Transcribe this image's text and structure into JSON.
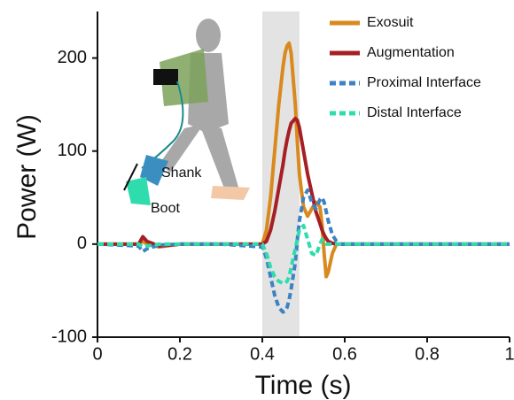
{
  "chart_data": {
    "type": "line",
    "x_label": "Time (s)",
    "y_label": "Power (W)",
    "xlim": [
      0,
      1
    ],
    "ylim": [
      -100,
      250
    ],
    "xticks": [
      0,
      0.2,
      0.4,
      0.6,
      0.8,
      1
    ],
    "yticks": [
      -100,
      0,
      100,
      200
    ],
    "shaded_x": [
      0.4,
      0.49
    ],
    "legend": "upper right",
    "annotations": [
      {
        "text": "Shank"
      },
      {
        "text": "Boot"
      }
    ],
    "x": [
      0,
      0.1,
      0.11,
      0.12,
      0.15,
      0.2,
      0.3,
      0.4,
      0.41,
      0.42,
      0.43,
      0.44,
      0.45,
      0.455,
      0.46,
      0.465,
      0.47,
      0.48,
      0.485,
      0.49,
      0.5,
      0.51,
      0.52,
      0.53,
      0.54,
      0.545,
      0.55,
      0.555,
      0.56,
      0.57,
      0.58,
      0.59,
      0.6,
      0.7,
      0.8,
      0.9,
      1
    ],
    "series": [
      {
        "name": "Exosuit",
        "color": "#d98a1e",
        "dashed": false,
        "values": [
          0,
          0,
          3,
          0,
          -3,
          0,
          0,
          0,
          15,
          50,
          100,
          150,
          190,
          205,
          213,
          216,
          205,
          150,
          110,
          75,
          40,
          30,
          38,
          45,
          40,
          20,
          -10,
          -35,
          -30,
          -10,
          0,
          0,
          0,
          0,
          0,
          0,
          0
        ]
      },
      {
        "name": "Augmentation",
        "color": "#a51f24",
        "dashed": false,
        "values": [
          0,
          0,
          8,
          3,
          -2,
          0,
          0,
          0,
          3,
          15,
          35,
          60,
          85,
          100,
          112,
          122,
          130,
          135,
          133,
          125,
          100,
          75,
          55,
          35,
          22,
          15,
          10,
          6,
          3,
          1,
          0,
          0,
          0,
          0,
          0,
          0,
          0
        ]
      },
      {
        "name": "Proximal Interface",
        "color": "#3d82c4",
        "dashed": true,
        "values": [
          0,
          -2,
          -8,
          -5,
          -1,
          0,
          0,
          -3,
          -15,
          -35,
          -55,
          -68,
          -73,
          -72,
          -68,
          -60,
          -48,
          -20,
          5,
          25,
          50,
          58,
          45,
          38,
          48,
          50,
          45,
          35,
          25,
          10,
          3,
          0,
          0,
          0,
          0,
          0,
          0
        ]
      },
      {
        "name": "Distal Interface",
        "color": "#2fdcad",
        "dashed": true,
        "values": [
          0,
          0,
          -3,
          -2,
          0,
          0,
          0,
          0,
          -10,
          -25,
          -35,
          -40,
          -42,
          -42,
          -40,
          -35,
          -25,
          -5,
          5,
          15,
          20,
          5,
          -10,
          -12,
          0,
          5,
          3,
          0,
          0,
          0,
          0,
          0,
          0,
          0,
          0,
          0,
          0
        ]
      }
    ]
  }
}
